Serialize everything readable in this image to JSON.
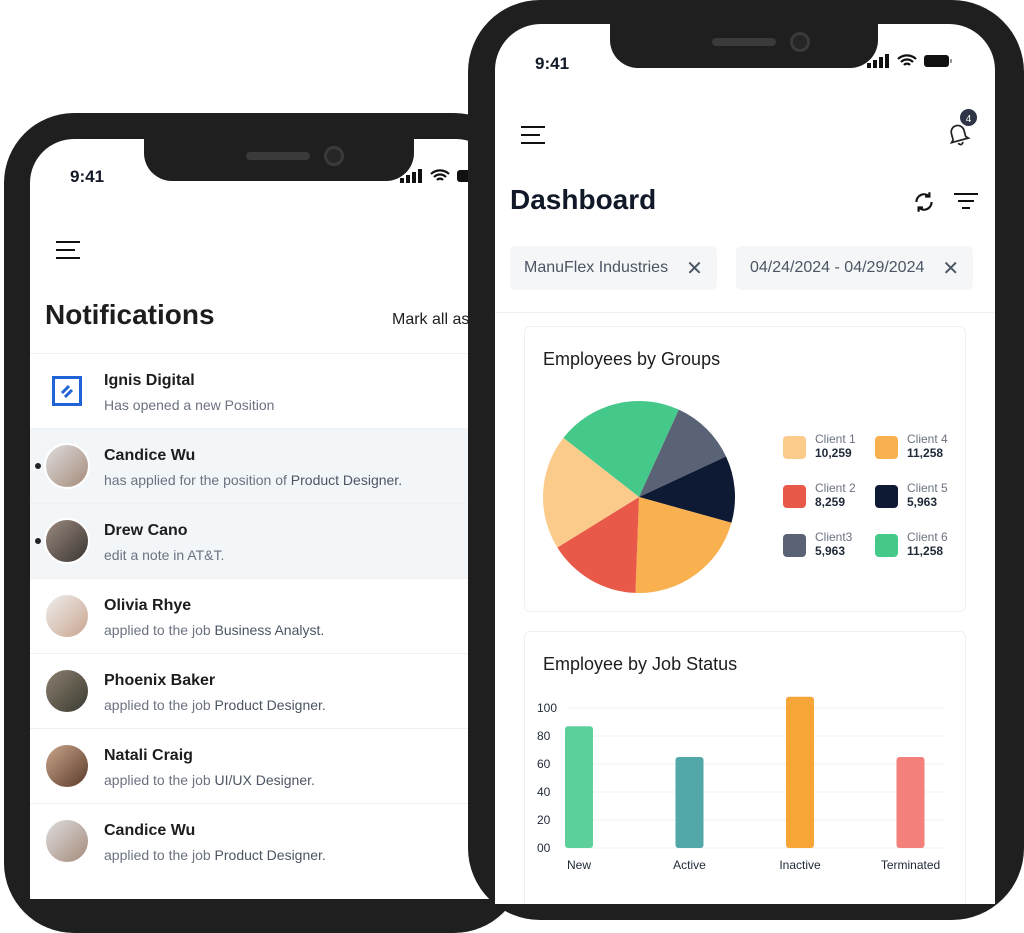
{
  "status_bar": {
    "time": "9:41"
  },
  "notifications": {
    "title": "Notifications",
    "mark_all": "Mark all as read",
    "items": [
      {
        "name": "Ignis Digital",
        "text": "Has opened a new Position",
        "highlight": "",
        "unread": false,
        "avatar": "company-logo"
      },
      {
        "name": "Candice Wu",
        "text": "has applied for the position of ",
        "highlight": "Product Designer.",
        "unread": true
      },
      {
        "name": "Drew Cano",
        "text": "edit a note in AT&T.",
        "highlight": "",
        "unread": true
      },
      {
        "name": "Olivia Rhye",
        "text": "applied to the job ",
        "highlight": "Business Analyst.",
        "unread": false
      },
      {
        "name": "Phoenix Baker",
        "text": "applied to the job ",
        "highlight": "Product Designer.",
        "unread": false
      },
      {
        "name": "Natali Craig",
        "text": "applied to the job ",
        "highlight": "UI/UX Designer.",
        "unread": false
      },
      {
        "name": "Candice Wu",
        "text": "applied to the job ",
        "highlight": "Product Designer.",
        "unread": false
      }
    ]
  },
  "dashboard": {
    "title": "Dashboard",
    "notification_count": "4",
    "filters": [
      {
        "label": "ManuFlex Industries"
      },
      {
        "label": "04/24/2024 - 04/29/2024"
      }
    ]
  },
  "chart_data": [
    {
      "type": "pie",
      "title": "Employees by Groups",
      "slices": [
        {
          "name": "Client 1",
          "value": 10259,
          "display": "10,259",
          "color": "#fbcb8c"
        },
        {
          "name": "Client 2",
          "value": 8259,
          "display": "8,259",
          "color": "#e9594a"
        },
        {
          "name": "Client3",
          "value": 5963,
          "display": "5,963",
          "color": "#5a6275"
        },
        {
          "name": "Client 4",
          "value": 11258,
          "display": "11,258",
          "color": "#f9b04f"
        },
        {
          "name": "Client 5",
          "value": 5963,
          "display": "5,963",
          "color": "#0e1a33"
        },
        {
          "name": "Client 6",
          "value": 11258,
          "display": "11,258",
          "color": "#45c98a"
        }
      ],
      "draw_order": [
        "Client 6",
        "Client3",
        "Client 5",
        "Client 4",
        "Client 2",
        "Client 1"
      ],
      "legend": "right"
    },
    {
      "type": "bar",
      "title": "Employee by Job Status",
      "categories": [
        "New",
        "Active",
        "Inactive",
        "Terminated"
      ],
      "values": [
        87,
        65,
        108,
        65
      ],
      "colors": [
        "#5ccf9a",
        "#52a7a8",
        "#f6a537",
        "#f3807a"
      ],
      "yticks": [
        "00",
        "20",
        "40",
        "60",
        "80",
        "100"
      ],
      "ylim": [
        0,
        110
      ],
      "grid": true
    }
  ]
}
